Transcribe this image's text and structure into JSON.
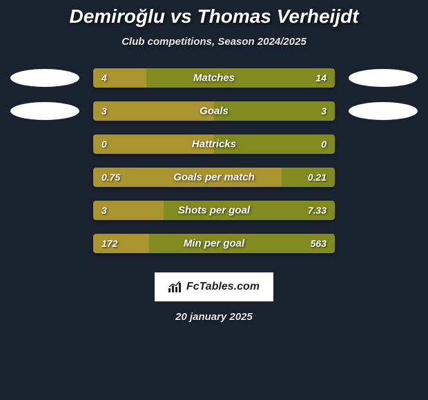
{
  "title": "Demiroğlu vs Thomas Verheijdt",
  "subtitle": "Club competitions, Season 2024/2025",
  "date": "20 january 2025",
  "brand": "FcTables.com",
  "colors": {
    "left": "#aa9430",
    "right": "#828b1f",
    "bg": "#1a2230"
  },
  "rows": [
    {
      "label": "Matches",
      "left_val": "4",
      "right_val": "14",
      "left_pct": 22,
      "right_pct": 78,
      "show_avatars": true
    },
    {
      "label": "Goals",
      "left_val": "3",
      "right_val": "3",
      "left_pct": 50,
      "right_pct": 50,
      "show_avatars": true
    },
    {
      "label": "Hattricks",
      "left_val": "0",
      "right_val": "0",
      "left_pct": 50,
      "right_pct": 50,
      "show_avatars": false
    },
    {
      "label": "Goals per match",
      "left_val": "0.75",
      "right_val": "0.21",
      "left_pct": 78,
      "right_pct": 22,
      "show_avatars": false
    },
    {
      "label": "Shots per goal",
      "left_val": "3",
      "right_val": "7.33",
      "left_pct": 29,
      "right_pct": 71,
      "show_avatars": false
    },
    {
      "label": "Min per goal",
      "left_val": "172",
      "right_val": "563",
      "left_pct": 23,
      "right_pct": 77,
      "show_avatars": false
    }
  ]
}
